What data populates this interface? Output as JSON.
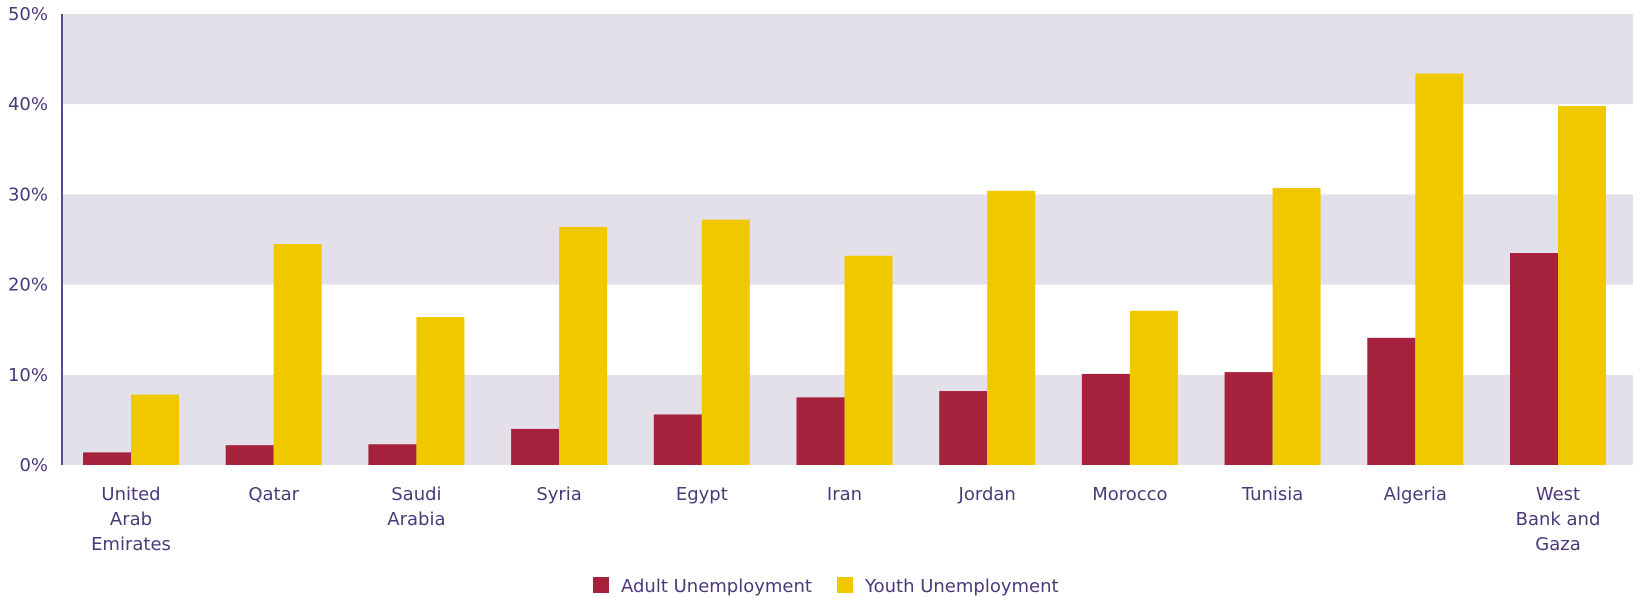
{
  "chart_data": {
    "type": "bar",
    "title": "",
    "xlabel": "",
    "ylabel": "",
    "ylim": [
      0,
      50
    ],
    "ytick_values": [
      0,
      10,
      20,
      30,
      40,
      50
    ],
    "ytick_labels": [
      "0%",
      "10%",
      "20%",
      "30%",
      "40%",
      "50%"
    ],
    "grid": "alternating horizontal bands",
    "legend_position": "bottom-center",
    "categories": [
      [
        "United",
        "Arab",
        "Emirates"
      ],
      [
        "Qatar"
      ],
      [
        "Saudi",
        "Arabia"
      ],
      [
        "Syria"
      ],
      [
        "Egypt"
      ],
      [
        "Iran"
      ],
      [
        "Jordan"
      ],
      [
        "Morocco"
      ],
      [
        "Tunisia"
      ],
      [
        "Algeria"
      ],
      [
        "West",
        "Bank and",
        "Gaza"
      ]
    ],
    "series": [
      {
        "name": "Adult Unemployment",
        "color": "#a6213c",
        "values": [
          1.4,
          2.2,
          2.3,
          4.0,
          5.6,
          7.5,
          8.2,
          10.1,
          10.3,
          14.1,
          23.5
        ]
      },
      {
        "name": "Youth Unemployment",
        "color": "#f0c800",
        "values": [
          7.8,
          24.5,
          16.4,
          26.4,
          27.2,
          23.2,
          30.4,
          17.1,
          30.7,
          43.4,
          39.8
        ]
      }
    ],
    "colors": {
      "band": "#e3e0ea",
      "axis": "#5b4a8a",
      "text": "#4b3a7a"
    }
  }
}
